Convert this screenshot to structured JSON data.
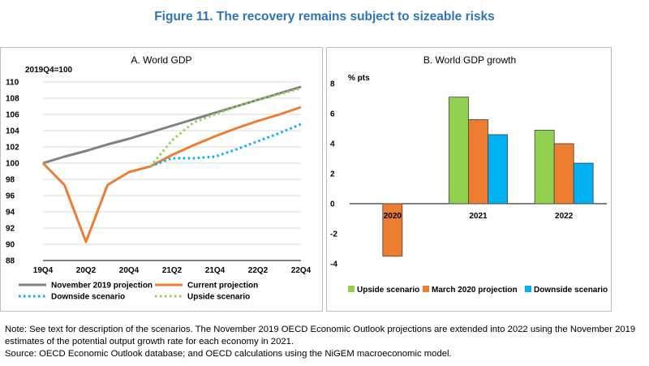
{
  "figure_title": "Figure 11. The recovery remains subject to sizeable risks",
  "notes": {
    "note": "Note: See text for description of the scenarios. The November 2019 OECD Economic Outlook projections are extended into 2022 using the November 2019 estimates of the potential output growth rate for each economy in 2021.",
    "source": "Source: OECD Economic Outlook database; and OECD calculations using the NiGEM macroeconomic model."
  },
  "chart_data": [
    {
      "type": "line",
      "title": "A. World GDP",
      "ylabel": "2019Q4=100",
      "ylim": [
        88,
        110
      ],
      "yticks": [
        88,
        90,
        92,
        94,
        96,
        98,
        100,
        102,
        104,
        106,
        108,
        110
      ],
      "x_tick_labels": [
        "19Q4",
        "20Q2",
        "20Q4",
        "21Q2",
        "21Q4",
        "22Q2",
        "22Q4"
      ],
      "x": [
        "19Q4",
        "20Q1",
        "20Q2",
        "20Q3",
        "20Q4",
        "21Q1",
        "21Q2",
        "21Q3",
        "21Q4",
        "22Q1",
        "22Q2",
        "22Q3",
        "22Q4"
      ],
      "grid": true,
      "legend_position": "bottom",
      "series": [
        {
          "name": "November 2019 projection",
          "color": "#808080",
          "style": "solid",
          "values": [
            100.0,
            100.8,
            101.5,
            102.3,
            103.0,
            103.8,
            104.6,
            105.4,
            106.2,
            107.0,
            107.8,
            108.6,
            109.4
          ]
        },
        {
          "name": "Current projection",
          "color": "#ed7d31",
          "style": "solid",
          "values": [
            100.0,
            97.3,
            90.3,
            97.3,
            98.9,
            99.6,
            101.0,
            102.2,
            103.3,
            104.3,
            105.2,
            106.0,
            106.9
          ]
        },
        {
          "name": "Downside scenario",
          "color": "#00b0f0",
          "style": "dotted",
          "values": [
            null,
            null,
            null,
            null,
            null,
            99.6,
            100.6,
            100.6,
            100.8,
            101.7,
            102.7,
            103.7,
            104.8
          ]
        },
        {
          "name": "Upside scenario",
          "color": "#92d050",
          "style": "dotted",
          "values": [
            null,
            null,
            null,
            null,
            null,
            99.6,
            102.8,
            105.0,
            106.0,
            107.0,
            107.8,
            108.5,
            109.2
          ]
        }
      ]
    },
    {
      "type": "bar",
      "title": "B. World GDP growth",
      "ylabel": "% pts",
      "ylim": [
        -4,
        8
      ],
      "yticks": [
        -4,
        -2,
        0,
        2,
        4,
        6,
        8
      ],
      "categories": [
        "2020",
        "2021",
        "2022"
      ],
      "legend_position": "bottom",
      "series": [
        {
          "name": "Upside scenario",
          "color": "#92d050",
          "values": [
            null,
            7.1,
            4.9
          ]
        },
        {
          "name": "March 2020 projection",
          "color": "#ed7d31",
          "values": [
            -3.5,
            5.6,
            4.0
          ]
        },
        {
          "name": "Downside scenario",
          "color": "#00b0f0",
          "values": [
            null,
            4.6,
            2.7
          ]
        }
      ]
    }
  ]
}
